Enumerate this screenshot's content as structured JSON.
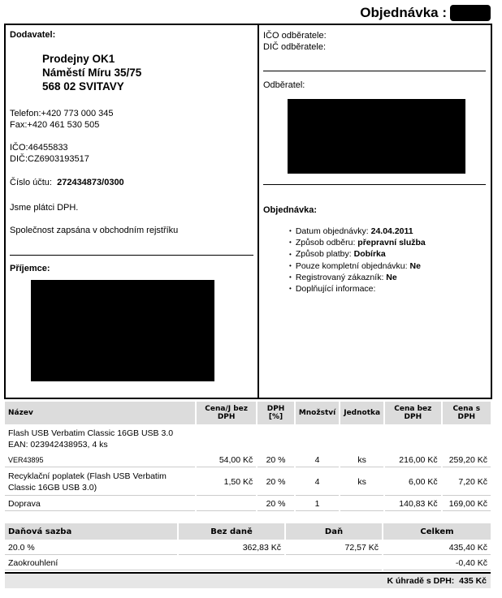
{
  "header": {
    "title": "Objednávka :"
  },
  "supplier": {
    "heading": "Dodavatel:",
    "name": "Prodejny OK1",
    "street": "Náměstí Míru 35/75",
    "city": "568 02 SVITAVY",
    "phone": "Telefon:+420 773 000 345",
    "fax": "Fax:+420 461 530 505",
    "ico": "IČO:46455833",
    "dic": "DIČ:CZ6903193517",
    "account_label": "Číslo účtu:",
    "account": "272434873/0300",
    "vat_payer": "Jsme plátci DPH.",
    "registry": "Společnost zapsána v obchodním rejstříku"
  },
  "recipient": {
    "heading": "Příjemce:"
  },
  "customer": {
    "ico_label": "IČO odběratele:",
    "dic_label": "DIČ odběratele:",
    "heading": "Odběratel:"
  },
  "order": {
    "heading": "Objednávka:",
    "items": [
      {
        "label": "Datum objednávky:",
        "value": "24.04.2011"
      },
      {
        "label": "Způsob odběru:",
        "value": "přepravní služba"
      },
      {
        "label": "Způsob platby:",
        "value": "Dobírka"
      },
      {
        "label": "Pouze kompletní objednávku:",
        "value": "Ne"
      },
      {
        "label": "Registrovaný zákazník:",
        "value": "Ne"
      },
      {
        "label": "Doplňující informace:",
        "value": ""
      }
    ]
  },
  "items_table": {
    "headers": [
      "Název",
      "Cena/J bez DPH",
      "DPH [%]",
      "Množství",
      "Jednotka",
      "Cena bez DPH",
      "Cena s DPH"
    ],
    "product_desc": [
      "Flash USB Verbatim Classic 16GB USB 3.0",
      "EAN: 023942438953, 4 ks"
    ],
    "rows": [
      [
        "VER43895",
        "54,00 Kč",
        "20  %",
        "4",
        "ks",
        "216,00 Kč",
        "259,20 Kč"
      ],
      [
        "Recyklační poplatek (Flash USB Verbatim Classic 16GB USB 3.0)",
        "1,50 Kč",
        "20  %",
        "4",
        "ks",
        "6,00 Kč",
        "7,20 Kč"
      ],
      [
        "Doprava",
        "",
        "20  %",
        "1",
        "",
        "140,83 Kč",
        "169,00 Kč"
      ]
    ]
  },
  "summary": {
    "headers": [
      "Daňová sazba",
      "Bez daně",
      "Daň",
      "Celkem"
    ],
    "rows": [
      [
        "20.0 %",
        "362,83 Kč",
        "72,57 Kč",
        "435,40 Kč"
      ],
      [
        "Zaokrouhlení",
        "",
        "",
        "-0,40 Kč"
      ]
    ],
    "total_label": "K úhradě s DPH:",
    "total": "435 Kč"
  }
}
